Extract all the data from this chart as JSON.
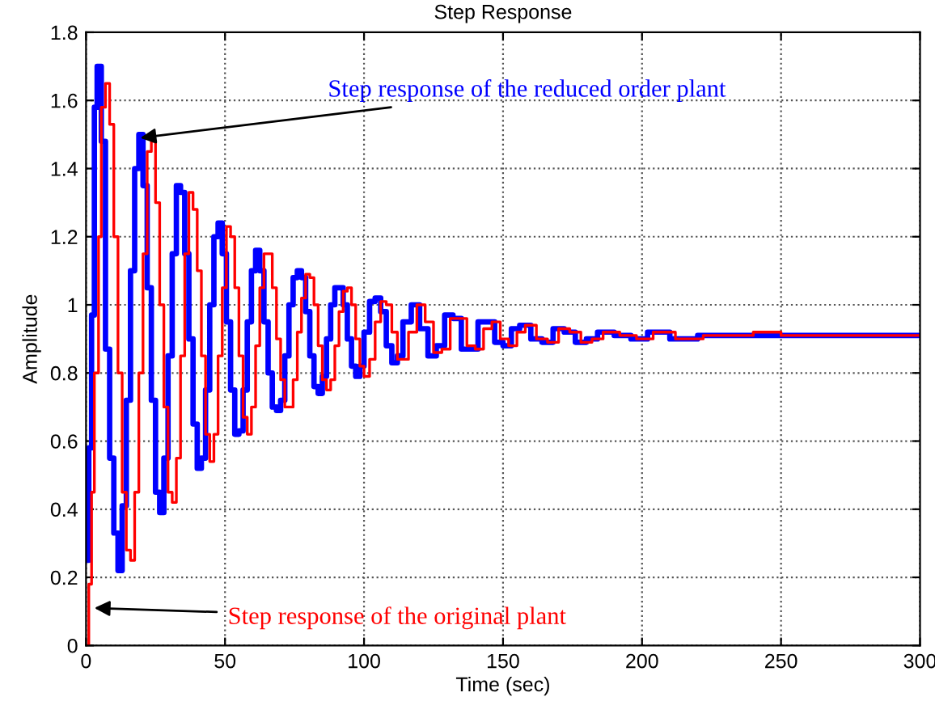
{
  "chart_data": {
    "type": "step",
    "title": "Step Response",
    "xlabel": "Time (sec)",
    "ylabel": "Amplitude",
    "xlim": [
      0,
      300
    ],
    "xticks": [
      0,
      50,
      100,
      150,
      200,
      250,
      300
    ],
    "ylim": [
      0,
      1.8
    ],
    "yticks": [
      0,
      0.2,
      0.4,
      0.6,
      0.8,
      1,
      1.2,
      1.4,
      1.6,
      1.8
    ],
    "grid": true,
    "series": [
      {
        "color": "#0000ff",
        "x": [
          0,
          1,
          2,
          3,
          4,
          5.5,
          7,
          8.5,
          10,
          11.5,
          13,
          14.5,
          16,
          17.5,
          19,
          20.5,
          22,
          23.5,
          25,
          26.5,
          28,
          29.5,
          31,
          32.5,
          34,
          35.5,
          37,
          38.5,
          40,
          41.5,
          43,
          44.5,
          46,
          47.5,
          49,
          50.5,
          52,
          53.5,
          55,
          56.5,
          58,
          59.5,
          61,
          62.5,
          64,
          65.5,
          67,
          68.5,
          70,
          71.5,
          73,
          74.5,
          76,
          77.5,
          79,
          80.5,
          82,
          83.5,
          85,
          86.5,
          88,
          89.5,
          91,
          92.5,
          94,
          95.5,
          97,
          98.5,
          100,
          102,
          104,
          106,
          108,
          110,
          112,
          114,
          117,
          120,
          123,
          126,
          129,
          132,
          135,
          138,
          141,
          144,
          147,
          150,
          153,
          156,
          160,
          164,
          168,
          172,
          176,
          180,
          184,
          190,
          196,
          202,
          210,
          220,
          235,
          300
        ],
        "values": [
          0.25,
          0.58,
          0.97,
          1.58,
          1.7,
          1.48,
          0.87,
          0.55,
          0.33,
          0.22,
          0.41,
          0.72,
          1.1,
          1.4,
          1.5,
          1.35,
          1.05,
          0.72,
          0.45,
          0.39,
          0.55,
          0.85,
          1.15,
          1.35,
          1.33,
          1.15,
          0.9,
          0.65,
          0.52,
          0.55,
          0.75,
          1.0,
          1.2,
          1.24,
          1.15,
          0.95,
          0.75,
          0.62,
          0.63,
          0.75,
          0.95,
          1.1,
          1.16,
          1.1,
          0.95,
          0.8,
          0.7,
          0.69,
          0.72,
          0.85,
          1.0,
          1.08,
          1.1,
          1.08,
          0.98,
          0.85,
          0.76,
          0.74,
          0.79,
          0.9,
          1.0,
          1.05,
          1.05,
          1.0,
          0.9,
          0.82,
          0.79,
          0.82,
          0.92,
          1.01,
          1.02,
          0.98,
          0.88,
          0.83,
          0.85,
          0.95,
          1.0,
          0.93,
          0.85,
          0.88,
          0.97,
          0.96,
          0.87,
          0.87,
          0.95,
          0.95,
          0.89,
          0.88,
          0.93,
          0.94,
          0.9,
          0.89,
          0.93,
          0.92,
          0.89,
          0.9,
          0.92,
          0.91,
          0.9,
          0.92,
          0.9,
          0.91,
          0.91,
          0.91
        ]
      },
      {
        "color": "#ff0000",
        "x": [
          0,
          1,
          2,
          3,
          4.5,
          5.5,
          7,
          8.5,
          10,
          11.5,
          13,
          14.5,
          16,
          17.5,
          19,
          20.5,
          22,
          23.5,
          25,
          26.5,
          28,
          29.5,
          31,
          32.5,
          34,
          35.5,
          37,
          38.5,
          40,
          41.5,
          43,
          44.5,
          46,
          47.5,
          49,
          50.5,
          52,
          53.5,
          55,
          56.5,
          58,
          59.5,
          61,
          62.5,
          64,
          65.5,
          67,
          68.5,
          70,
          71.5,
          73,
          74.5,
          76,
          77.5,
          79,
          80.5,
          82,
          83.5,
          85,
          86.5,
          88,
          89.5,
          91,
          92.5,
          94,
          95.5,
          97,
          98.5,
          100,
          102,
          104,
          106,
          108,
          110,
          112,
          114,
          116,
          119,
          122,
          125,
          128,
          131,
          134,
          137,
          140,
          143,
          146,
          149,
          152,
          155,
          158,
          162,
          166,
          170,
          174,
          178,
          182,
          186,
          192,
          198,
          204,
          212,
          222,
          240,
          250,
          300
        ],
        "values": [
          0,
          0.18,
          0.45,
          0.8,
          1.2,
          1.58,
          1.65,
          1.53,
          1.2,
          0.8,
          0.45,
          0.28,
          0.25,
          0.45,
          0.8,
          1.15,
          1.45,
          1.48,
          1.3,
          1.0,
          0.7,
          0.45,
          0.42,
          0.55,
          0.85,
          1.15,
          1.33,
          1.28,
          1.1,
          0.85,
          0.62,
          0.54,
          0.62,
          0.85,
          1.05,
          1.23,
          1.2,
          1.05,
          0.85,
          0.67,
          0.62,
          0.7,
          0.88,
          1.05,
          1.15,
          1.15,
          1.05,
          0.9,
          0.78,
          0.7,
          0.7,
          0.78,
          0.92,
          1.02,
          1.09,
          1.08,
          1.0,
          0.88,
          0.78,
          0.75,
          0.78,
          0.88,
          0.98,
          1.04,
          1.05,
          1.0,
          0.9,
          0.82,
          0.79,
          0.84,
          0.95,
          1.01,
          1.0,
          0.92,
          0.84,
          0.84,
          0.92,
          1.0,
          0.95,
          0.86,
          0.87,
          0.96,
          0.96,
          0.88,
          0.87,
          0.93,
          0.95,
          0.9,
          0.88,
          0.92,
          0.94,
          0.9,
          0.89,
          0.93,
          0.92,
          0.89,
          0.9,
          0.92,
          0.91,
          0.9,
          0.92,
          0.9,
          0.91,
          0.92,
          0.91,
          0.91
        ]
      }
    ],
    "annotations": [
      {
        "text": "Step response of the reduced order plant",
        "x": 19.5,
        "y": 1.49
      },
      {
        "text": "Step response of the original plant",
        "x": 3,
        "y": 0.11
      }
    ]
  }
}
